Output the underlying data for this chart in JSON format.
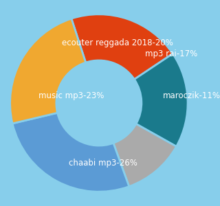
{
  "labels": [
    "ecouter reggada 2018",
    "mp3 rai",
    "maroczik",
    "chaabi mp3",
    "music mp3"
  ],
  "values": [
    20,
    17,
    11,
    26,
    23
  ],
  "label_texts": [
    "ecouter reggada 2018-20%",
    "mp3 rai-17%",
    "maroczik-11%",
    "chaabi mp3-26%",
    "music mp3-23%"
  ],
  "colors": [
    "#E04010",
    "#1A7A8C",
    "#AAAAAA",
    "#5B9BD5",
    "#F0A830"
  ],
  "background_color": "#87CEEB",
  "text_color": "white",
  "font_size": 8.5,
  "startangle": 108
}
